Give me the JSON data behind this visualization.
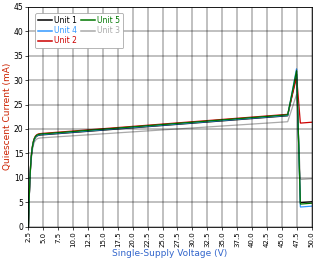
{
  "xlabel": "Single-Supply Voltage (V)",
  "ylabel": "Quiescent Current (mA)",
  "xlim": [
    2.5,
    50.0
  ],
  "ylim": [
    0,
    45
  ],
  "xticks": [
    2.5,
    5.0,
    7.5,
    10.0,
    12.5,
    15.0,
    17.5,
    20.0,
    22.5,
    25.0,
    27.5,
    30.0,
    32.5,
    35.0,
    37.5,
    40.0,
    42.5,
    45.0,
    47.5,
    50.0
  ],
  "xtick_labels": [
    "2.5",
    "5.0",
    "7.5",
    "10.0",
    "12.5",
    "15.0",
    "17.5",
    "20.0",
    "22.5",
    "25.0",
    "27.5",
    "30.0",
    "32.5",
    "35.0",
    "37.5",
    "40.0",
    "42.5",
    "45.0",
    "47.5",
    "50.0"
  ],
  "yticks": [
    0,
    5,
    10,
    15,
    20,
    25,
    30,
    35,
    40,
    45
  ],
  "units": [
    "Unit 1",
    "Unit 2",
    "Unit 3",
    "Unit 4",
    "Unit 5"
  ],
  "colors": [
    "#000000",
    "#cc0000",
    "#aaaaaa",
    "#3399ff",
    "#007700"
  ],
  "legend_order": [
    0,
    3,
    1,
    4,
    2
  ],
  "background_color": "#ffffff"
}
